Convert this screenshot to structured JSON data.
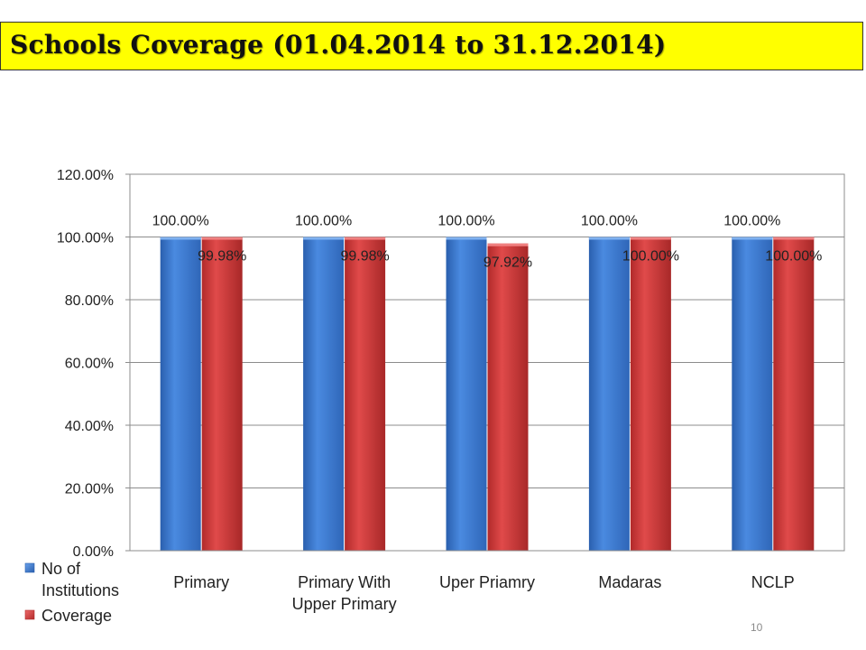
{
  "slide": {
    "title": "Schools Coverage (01.04.2014 to 31.12.2014)",
    "page_number": "10"
  },
  "chart_data": {
    "type": "bar",
    "categories": [
      "Primary",
      "Primary With Upper Primary",
      "Uper Priamry",
      "Madaras",
      "NCLP"
    ],
    "category_lines": [
      [
        "Primary"
      ],
      [
        "Primary With",
        "Upper Primary"
      ],
      [
        "Uper Priamry"
      ],
      [
        "Madaras"
      ],
      [
        "NCLP"
      ]
    ],
    "series": [
      {
        "name": "No of Institutions",
        "legend_lines": [
          "No of",
          "Institutions"
        ],
        "color": "#3f7fd6",
        "values": [
          100.0,
          100.0,
          100.0,
          100.0,
          100.0
        ],
        "labels": [
          "100.00%",
          "100.00%",
          "100.00%",
          "100.00%",
          "100.00%"
        ]
      },
      {
        "name": "Coverage",
        "legend_lines": [
          "Coverage"
        ],
        "color": "#d94040",
        "values": [
          99.98,
          99.98,
          97.92,
          100.0,
          100.0
        ],
        "labels": [
          "99.98%",
          "99.98%",
          "97.92%",
          "100.00%",
          "100.00%"
        ]
      }
    ],
    "ylim": [
      0,
      120
    ],
    "yticks": [
      0,
      20,
      40,
      60,
      80,
      100,
      120
    ],
    "ytick_labels": [
      "0.00%",
      "20.00%",
      "40.00%",
      "60.00%",
      "80.00%",
      "100.00%",
      "120.00%"
    ],
    "grid": true,
    "legend_position": "bottom-left"
  }
}
